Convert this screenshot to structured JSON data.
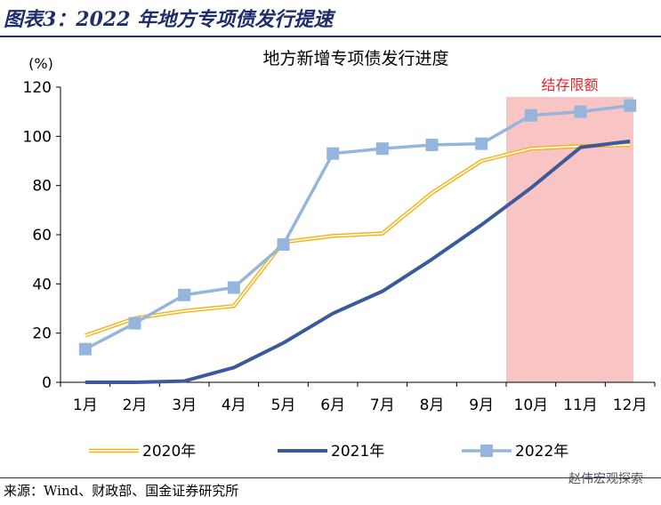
{
  "figure": {
    "title": "图表3：2022 年地方专项债发行提速",
    "source": "来源：Wind、财政部、国金证券研究所",
    "watermark": "赵伟宏观探索"
  },
  "chart_data": {
    "type": "line",
    "title": "地方新增专项债发行进度",
    "ylabel": "(%)",
    "xlabel": "",
    "categories": [
      "1月",
      "2月",
      "3月",
      "4月",
      "5月",
      "6月",
      "7月",
      "8月",
      "9月",
      "10月",
      "11月",
      "12月"
    ],
    "ylim": [
      0,
      120
    ],
    "yticks": [
      0,
      20,
      40,
      60,
      80,
      100,
      120
    ],
    "grid": false,
    "legend": "bottom",
    "series": [
      {
        "name": "2020年",
        "color": "#f3b41a",
        "marker": "none",
        "style": "double",
        "values": [
          19,
          26,
          29,
          31,
          57,
          59.5,
          60.5,
          77,
          90,
          95,
          96,
          96.5
        ]
      },
      {
        "name": "2021年",
        "color": "#3a5a9c",
        "marker": "none",
        "style": "thick",
        "values": [
          0,
          0,
          0.5,
          6,
          16,
          28,
          37,
          50,
          64,
          79,
          95.5,
          98
        ]
      },
      {
        "name": "2022年",
        "color": "#96b5dc",
        "marker": "square",
        "style": "normal",
        "values": [
          13.5,
          24,
          35.5,
          38.5,
          56,
          93,
          95,
          96.5,
          97,
          108.5,
          110,
          112.5
        ]
      }
    ],
    "highlight": {
      "label": "结存限额",
      "from_category": "10月",
      "to_category": "12月",
      "fill": "#f9c4c4",
      "label_color": "#e3242b"
    }
  }
}
